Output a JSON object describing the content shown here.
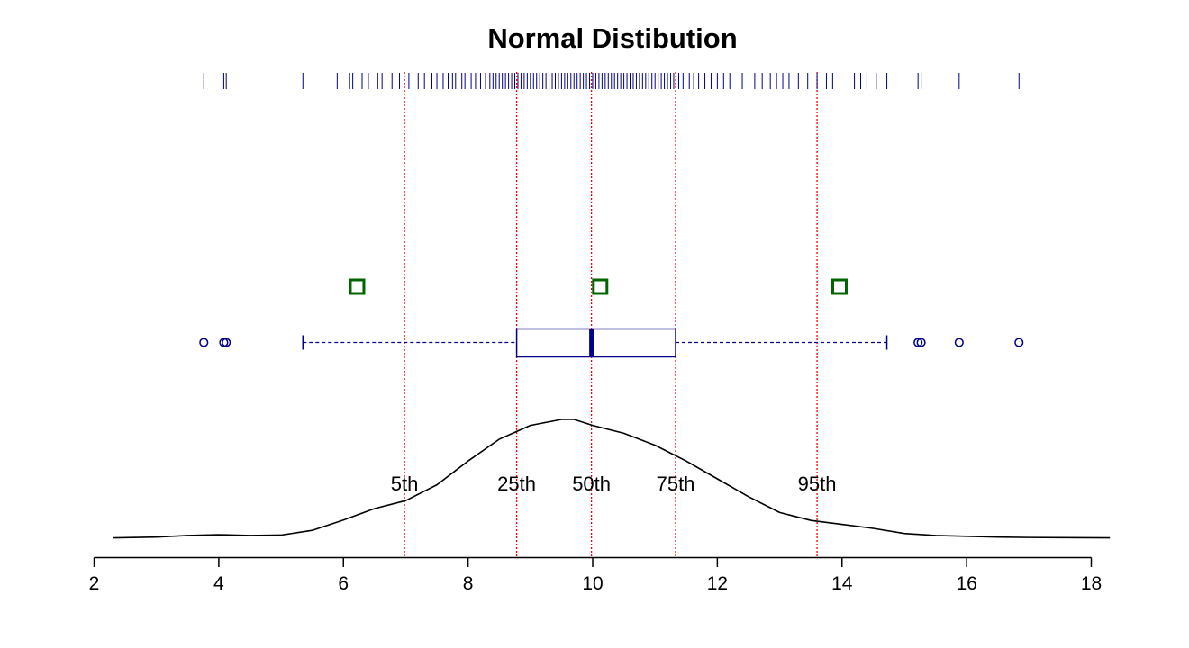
{
  "chart_data": {
    "type": "box",
    "title": "Normal Distibution",
    "xlabel": "",
    "ylabel": "",
    "xlim": [
      2,
      18
    ],
    "x_ticks": [
      2,
      4,
      6,
      8,
      10,
      12,
      14,
      16,
      18
    ],
    "x_tick_labels": [
      "2",
      "4",
      "6",
      "8",
      "10",
      "12",
      "14",
      "16",
      "18"
    ],
    "grid": false,
    "colors": {
      "rug": "#00008B",
      "box": "#00008B",
      "outlier": "#00008B",
      "percentile_line": "#FF0000",
      "marker_square": "#006400",
      "density": "#000000"
    },
    "boxplot": {
      "whisker_low": 5.35,
      "q1": 8.78,
      "median": 9.98,
      "q3": 11.33,
      "whisker_high": 14.72,
      "outliers": [
        3.76,
        4.08,
        4.12,
        15.22,
        15.27,
        15.88,
        16.84
      ]
    },
    "percentiles": [
      {
        "label": "5th",
        "value": 6.98
      },
      {
        "label": "25th",
        "value": 8.78
      },
      {
        "label": "50th",
        "value": 9.98
      },
      {
        "label": "75th",
        "value": 11.33
      },
      {
        "label": "95th",
        "value": 13.6
      }
    ],
    "square_markers": [
      6.22,
      10.12,
      13.96
    ],
    "rug": [
      3.76,
      4.08,
      4.12,
      5.35,
      5.9,
      6.1,
      6.15,
      6.3,
      6.4,
      6.55,
      6.62,
      6.78,
      6.9,
      7.05,
      7.2,
      7.3,
      7.42,
      7.5,
      7.6,
      7.68,
      7.75,
      7.8,
      7.9,
      7.95,
      8.05,
      8.12,
      8.2,
      8.28,
      8.35,
      8.4,
      8.45,
      8.5,
      8.55,
      8.6,
      8.65,
      8.7,
      8.75,
      8.8,
      8.85,
      8.9,
      8.95,
      9.0,
      9.05,
      9.1,
      9.15,
      9.2,
      9.25,
      9.3,
      9.35,
      9.4,
      9.45,
      9.5,
      9.55,
      9.6,
      9.65,
      9.7,
      9.75,
      9.8,
      9.85,
      9.9,
      9.95,
      10.0,
      10.05,
      10.1,
      10.15,
      10.2,
      10.25,
      10.3,
      10.35,
      10.4,
      10.45,
      10.5,
      10.55,
      10.6,
      10.65,
      10.7,
      10.75,
      10.8,
      10.85,
      10.9,
      10.95,
      11.0,
      11.05,
      11.1,
      11.15,
      11.2,
      11.25,
      11.3,
      11.38,
      11.45,
      11.55,
      11.62,
      11.7,
      11.8,
      11.9,
      12.0,
      12.1,
      12.2,
      12.4,
      12.6,
      12.72,
      12.85,
      12.95,
      13.05,
      13.15,
      13.3,
      13.45,
      13.6,
      13.75,
      13.85,
      14.2,
      14.3,
      14.4,
      14.55,
      14.72,
      15.22,
      15.27,
      15.88,
      16.84
    ],
    "density": {
      "x": [
        2.3,
        3.0,
        3.5,
        4.0,
        4.5,
        5.0,
        5.5,
        6.0,
        6.5,
        7.0,
        7.5,
        8.0,
        8.5,
        9.0,
        9.5,
        9.7,
        10.0,
        10.5,
        11.0,
        11.5,
        12.0,
        12.5,
        13.0,
        13.5,
        14.0,
        14.5,
        15.0,
        15.5,
        16.0,
        16.5,
        17.0,
        17.5,
        18.3
      ],
      "y": [
        0.001,
        0.003,
        0.007,
        0.009,
        0.007,
        0.008,
        0.02,
        0.046,
        0.075,
        0.095,
        0.135,
        0.195,
        0.25,
        0.285,
        0.3,
        0.3,
        0.285,
        0.265,
        0.235,
        0.195,
        0.15,
        0.105,
        0.065,
        0.045,
        0.035,
        0.025,
        0.012,
        0.007,
        0.005,
        0.003,
        0.002,
        0.0015,
        0.001
      ]
    }
  }
}
